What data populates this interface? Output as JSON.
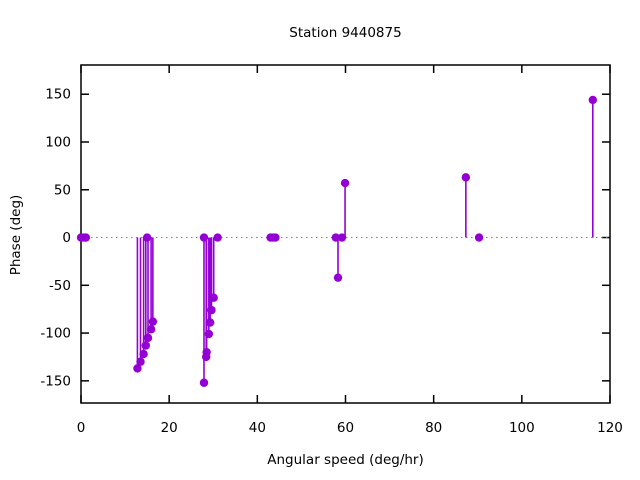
{
  "title": "Station 9440875",
  "colors": {
    "point": "#9400d3",
    "axis": "#000000",
    "zero_line": "#7f7f7f",
    "background": "#ffffff",
    "text": "#000000"
  },
  "chart_data": {
    "type": "scatter",
    "style": "impulses+points",
    "title": "Station 9440875",
    "xlabel": "Angular speed (deg/hr)",
    "ylabel": "Phase (deg)",
    "xlim": [
      0,
      120
    ],
    "ylim": [
      -173.2,
      180.6
    ],
    "x_ticks": [
      0,
      20,
      40,
      60,
      80,
      100,
      120
    ],
    "y_ticks": [
      -150,
      -100,
      -50,
      0,
      50,
      100,
      150
    ],
    "grid": false,
    "legend": false,
    "zero_line": true,
    "points": [
      [
        0.0,
        0
      ],
      [
        0.1,
        0
      ],
      [
        0.5,
        0
      ],
      [
        1.0,
        0
      ],
      [
        1.1,
        0
      ],
      [
        12.8,
        -137
      ],
      [
        13.5,
        -130
      ],
      [
        14.2,
        -122
      ],
      [
        14.7,
        -113
      ],
      [
        15.0,
        0
      ],
      [
        15.2,
        -105
      ],
      [
        15.9,
        -96
      ],
      [
        16.3,
        -88
      ],
      [
        27.9,
        0
      ],
      [
        27.9,
        -152
      ],
      [
        28.4,
        -125
      ],
      [
        28.5,
        -120
      ],
      [
        29.0,
        -101
      ],
      [
        29.3,
        -89
      ],
      [
        29.6,
        -76
      ],
      [
        30.1,
        -63
      ],
      [
        31.0,
        0
      ],
      [
        43.0,
        0
      ],
      [
        43.5,
        0
      ],
      [
        44.1,
        0
      ],
      [
        57.8,
        0
      ],
      [
        58.3,
        -42
      ],
      [
        59.2,
        0
      ],
      [
        59.9,
        57
      ],
      [
        87.3,
        63
      ],
      [
        90.3,
        0
      ],
      [
        116.1,
        144
      ]
    ]
  }
}
